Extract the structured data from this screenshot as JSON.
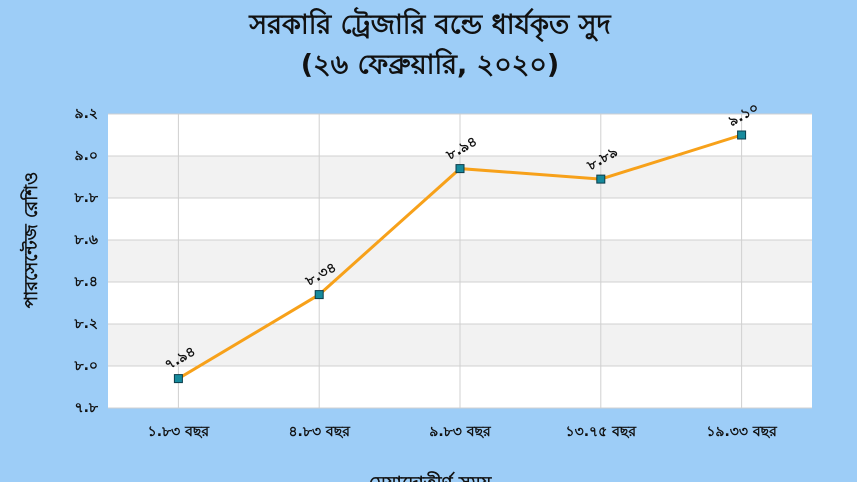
{
  "chart_data": {
    "type": "line",
    "title": "সরকারি ট্রেজারি বন্ডে ধার্যকৃত সুদ",
    "subtitle": "(২৬ ফেব্রুয়ারি, ২০২০)",
    "y_label": "পারসেন্টেজ রেশিও",
    "x_label": "মেয়াদোত্তীর্ণ সময়",
    "categories": [
      "১.৮৩ বছর",
      "৪.৮৩ বছর",
      "৯.৮৩ বছর",
      "১৩.৭৫ বছর",
      "১৯.৩৩ বছর"
    ],
    "series": [
      {
        "color": "#f7a11a",
        "marker_color": "#168a9c",
        "values": [
          7.94,
          8.34,
          8.94,
          8.89,
          9.1
        ],
        "value_labels": [
          "৭.৯৪",
          "৮.৩৪",
          "৮.৯৪",
          "৮.৮৯",
          "৯.১০"
        ]
      }
    ],
    "ylim": [
      7.8,
      9.2
    ],
    "yticks": [
      {
        "value": 7.8,
        "label": "৭.৮"
      },
      {
        "value": 8.0,
        "label": "৮.০"
      },
      {
        "value": 8.2,
        "label": "৮.২"
      },
      {
        "value": 8.4,
        "label": "৮.৪"
      },
      {
        "value": 8.6,
        "label": "৮.৬"
      },
      {
        "value": 8.8,
        "label": "৮.৮"
      },
      {
        "value": 9.0,
        "label": "৯.০"
      },
      {
        "value": 9.2,
        "label": "৯.২"
      }
    ],
    "grid": true
  }
}
